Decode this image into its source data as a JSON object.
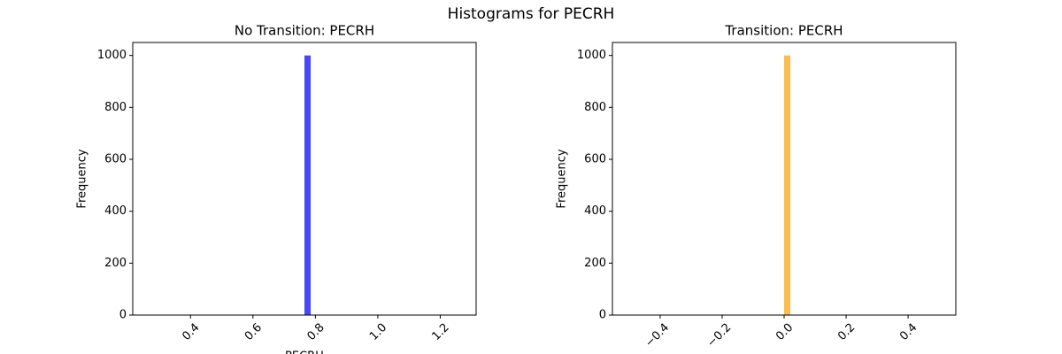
{
  "title": "Histograms for PECRH",
  "chart_data": [
    {
      "type": "histogram",
      "title": "No Transition: PECRH",
      "xlabel": "PECRH",
      "ylabel": "Frequency",
      "color": "#4848f8",
      "bins": [
        0.265,
        0.285,
        0.305,
        0.325,
        0.345,
        0.365,
        0.385,
        0.405,
        0.425,
        0.445,
        0.465,
        0.485,
        0.505,
        0.525,
        0.545,
        0.565,
        0.585,
        0.605,
        0.625,
        0.645,
        0.665,
        0.685,
        0.705,
        0.725,
        0.745,
        0.765,
        0.785,
        0.805,
        0.825,
        0.845,
        0.865,
        0.885,
        0.905,
        0.925,
        0.945,
        0.965,
        0.985,
        1.005,
        1.025,
        1.045,
        1.065,
        1.085,
        1.105,
        1.125,
        1.145,
        1.165,
        1.185,
        1.205,
        1.225,
        1.245,
        1.265
      ],
      "counts": [
        0,
        0,
        0,
        0,
        0,
        0,
        0,
        0,
        0,
        0,
        0,
        0,
        0,
        0,
        0,
        0,
        0,
        0,
        0,
        0,
        0,
        0,
        0,
        0,
        0,
        1000,
        0,
        0,
        0,
        0,
        0,
        0,
        0,
        0,
        0,
        0,
        0,
        0,
        0,
        0,
        0,
        0,
        0,
        0,
        0,
        0,
        0,
        0,
        0,
        0
      ],
      "xlim": [
        0.215,
        1.315
      ],
      "ylim": [
        0,
        1050
      ],
      "xticks": [
        0.4,
        0.6,
        0.8,
        {
          "value": 1.0,
          "label": "1.0"
        },
        1.2
      ],
      "yticks": [
        0,
        200,
        400,
        600,
        800,
        1000
      ]
    },
    {
      "type": "histogram",
      "title": "Transition: PECRH",
      "ylabel": "Frequency",
      "color": "#fbbd50",
      "bins": [
        -0.5,
        -0.48,
        -0.46,
        -0.44,
        -0.42,
        -0.4,
        -0.38,
        -0.36,
        -0.34,
        -0.32,
        -0.3,
        -0.28,
        -0.26,
        -0.24,
        -0.22,
        -0.2,
        -0.18,
        -0.16,
        -0.14,
        -0.12,
        -0.1,
        -0.08,
        -0.06,
        -0.04,
        -0.02,
        0,
        0.02,
        0.04,
        0.06,
        0.08,
        0.1,
        0.12,
        0.14,
        0.16,
        0.18,
        0.2,
        0.22,
        0.24,
        0.26,
        0.28,
        0.3,
        0.32,
        0.34,
        0.36,
        0.38,
        0.4,
        0.42,
        0.44,
        0.46,
        0.48,
        0.5
      ],
      "counts": [
        0,
        0,
        0,
        0,
        0,
        0,
        0,
        0,
        0,
        0,
        0,
        0,
        0,
        0,
        0,
        0,
        0,
        0,
        0,
        0,
        0,
        0,
        0,
        0,
        0,
        1000,
        0,
        0,
        0,
        0,
        0,
        0,
        0,
        0,
        0,
        0,
        0,
        0,
        0,
        0,
        0,
        0,
        0,
        0,
        0,
        0,
        0,
        0,
        0,
        0
      ],
      "xlim": [
        -0.554,
        0.554
      ],
      "ylim": [
        0,
        1050
      ],
      "xticks": [
        {
          "value": -0.4,
          "label": "−0.4"
        },
        {
          "value": -0.2,
          "label": "−0.2"
        },
        {
          "value": 0,
          "label": "0.0"
        },
        {
          "value": 0.2,
          "label": "0.2"
        },
        {
          "value": 0.4,
          "label": "0.4"
        }
      ],
      "yticks": [
        0,
        200,
        400,
        600,
        800,
        1000
      ]
    }
  ]
}
